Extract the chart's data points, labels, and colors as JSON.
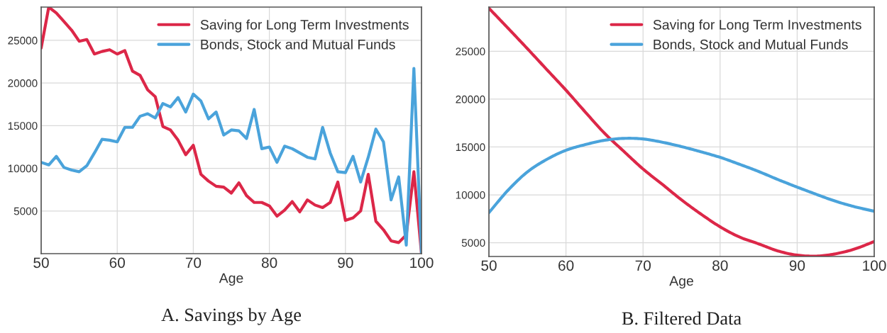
{
  "chart_data": [
    {
      "type": "line",
      "title": "A. Savings by Age",
      "xlabel": "Age",
      "x": [
        50,
        51,
        52,
        53,
        54,
        55,
        56,
        57,
        58,
        59,
        60,
        61,
        62,
        63,
        64,
        65,
        66,
        67,
        68,
        69,
        70,
        71,
        72,
        73,
        74,
        75,
        76,
        77,
        78,
        79,
        80,
        81,
        82,
        83,
        84,
        85,
        86,
        87,
        88,
        89,
        90,
        91,
        92,
        93,
        94,
        95,
        96,
        97,
        98,
        99,
        100
      ],
      "series": [
        {
          "name": "Saving for Long Term Investments",
          "color": "#dc2748",
          "values": [
            24100,
            28900,
            28200,
            27200,
            26200,
            24900,
            25100,
            23400,
            23700,
            23900,
            23400,
            23800,
            21400,
            20900,
            19200,
            18400,
            14900,
            14500,
            13300,
            11600,
            12700,
            9300,
            8500,
            7900,
            7800,
            7100,
            8300,
            6800,
            6000,
            6000,
            5600,
            4400,
            5100,
            6100,
            4900,
            6300,
            5700,
            5400,
            6000,
            8400,
            3900,
            4200,
            5000,
            9300,
            3800,
            2800,
            1500,
            1300,
            2200,
            9600,
            0
          ]
        },
        {
          "name": "Bonds, Stock and Mutual Funds",
          "color": "#4aa3db",
          "values": [
            10700,
            10400,
            11400,
            10100,
            9800,
            9600,
            10300,
            11800,
            13400,
            13300,
            13100,
            14800,
            14800,
            16100,
            16400,
            15900,
            17600,
            17200,
            18300,
            16600,
            18700,
            17900,
            15800,
            16600,
            13900,
            14500,
            14400,
            13500,
            16900,
            12300,
            12500,
            10700,
            12600,
            12300,
            11800,
            11300,
            11100,
            14800,
            11800,
            9600,
            9500,
            11400,
            8400,
            11300,
            14600,
            13100,
            6300,
            9000,
            1000,
            21700,
            0
          ]
        }
      ],
      "xlim": [
        50,
        100
      ],
      "xticks": [
        50,
        60,
        70,
        80,
        90,
        100
      ],
      "ylim": [
        0,
        28900
      ],
      "yticks": [
        5000,
        10000,
        15000,
        20000,
        25000
      ],
      "grid": true,
      "legend": "top right",
      "line_style": "solid"
    },
    {
      "type": "line",
      "title": "B. Filtered Data",
      "xlabel": "Age",
      "x": [
        50,
        52.5,
        55,
        57.5,
        60,
        62.5,
        65,
        67.5,
        70,
        72.5,
        75,
        77.5,
        80,
        82.5,
        85,
        87.5,
        90,
        92.5,
        95,
        97.5,
        100
      ],
      "series": [
        {
          "name": "Saving for Long Term Investments",
          "color": "#dc2748",
          "values": [
            29500,
            27400,
            25270,
            23100,
            20940,
            18660,
            16440,
            14550,
            12700,
            11100,
            9470,
            8000,
            6660,
            5600,
            4880,
            4140,
            3700,
            3600,
            3840,
            4350,
            5120
          ]
        },
        {
          "name": "Bonds, Stock and Mutual Funds",
          "color": "#4aa3db",
          "values": [
            8140,
            10500,
            12400,
            13700,
            14660,
            15250,
            15700,
            15900,
            15840,
            15500,
            15040,
            14500,
            13920,
            13200,
            12440,
            11600,
            10810,
            10050,
            9330,
            8750,
            8290
          ]
        }
      ],
      "xlim": [
        50,
        100
      ],
      "xticks": [
        50,
        60,
        70,
        80,
        90,
        100
      ],
      "ylim": [
        3560,
        29620
      ],
      "yticks": [
        5000,
        10000,
        15000,
        20000,
        25000
      ],
      "grid": true,
      "legend": "top right",
      "line_style": "solid"
    }
  ]
}
